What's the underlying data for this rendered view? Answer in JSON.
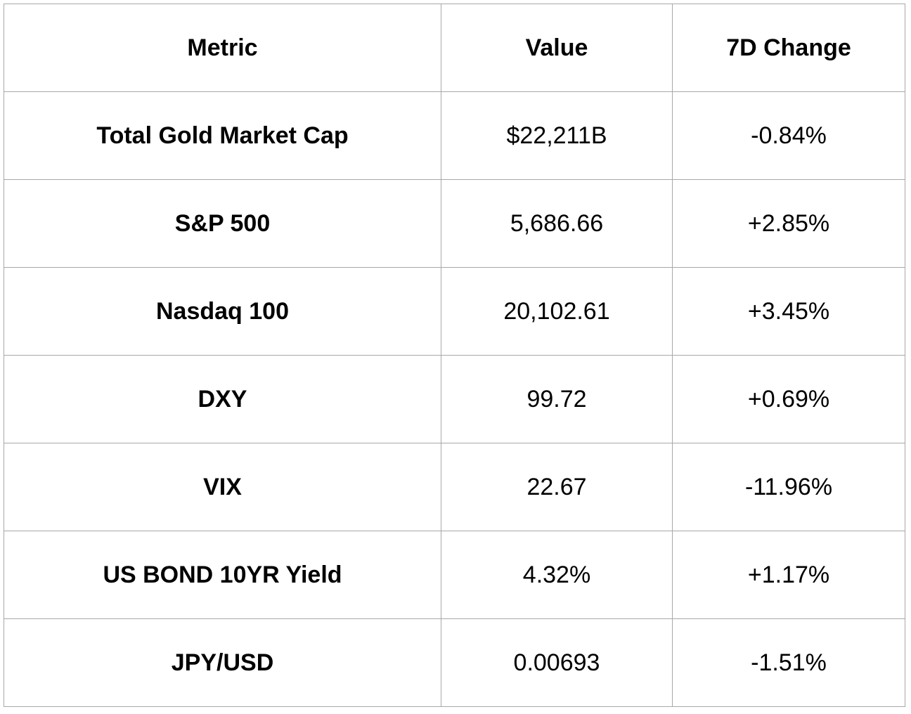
{
  "table": {
    "headers": {
      "metric": "Metric",
      "value": "Value",
      "change": "7D Change"
    },
    "rows": [
      {
        "metric": "Total Gold Market Cap",
        "value": "$22,211B",
        "change": "-0.84%"
      },
      {
        "metric": "S&P 500",
        "value": "5,686.66",
        "change": "+2.85%"
      },
      {
        "metric": "Nasdaq 100",
        "value": "20,102.61",
        "change": "+3.45%"
      },
      {
        "metric": "DXY",
        "value": "99.72",
        "change": "+0.69%"
      },
      {
        "metric": "VIX",
        "value": "22.67",
        "change": "-11.96%"
      },
      {
        "metric": "US BOND 10YR Yield",
        "value": "4.32%",
        "change": "+1.17%"
      },
      {
        "metric": "JPY/USD",
        "value": "0.00693",
        "change": "-1.51%"
      }
    ]
  },
  "colors": {
    "border": "#a8a8a8",
    "text": "#000000",
    "background": "#ffffff"
  }
}
